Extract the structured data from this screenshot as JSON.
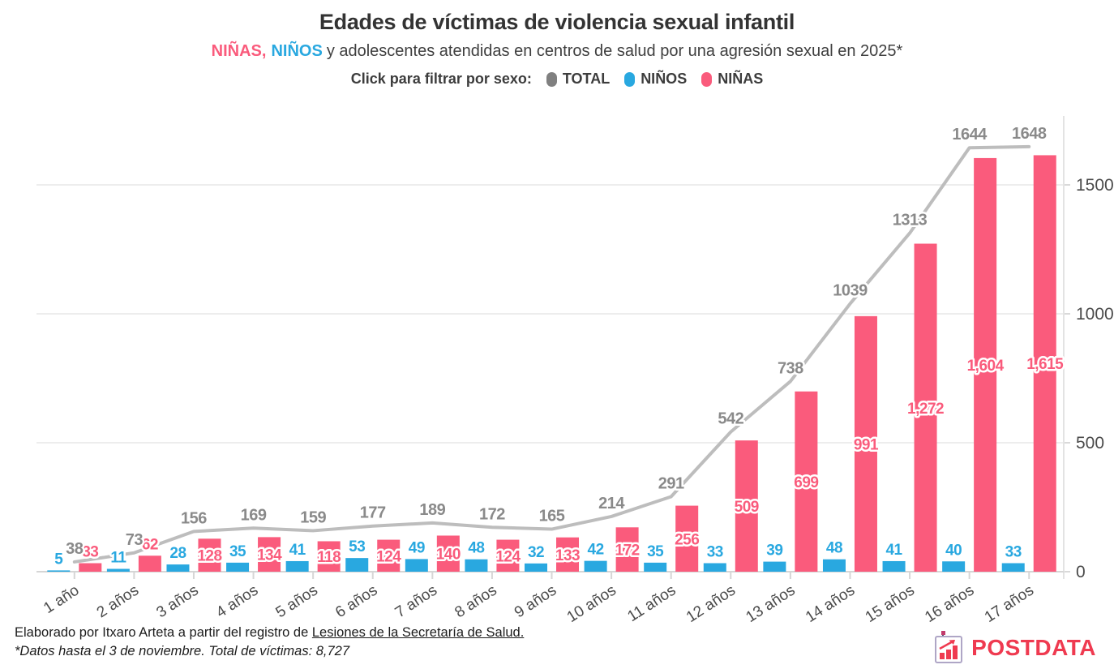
{
  "header": {
    "title": "Edades de víctimas de violencia sexual infantil",
    "subtitle": {
      "girls": "NIÑAS,",
      "boys": "NIÑOS",
      "rest": "y adolescentes atendidas en centros de salud por una agresión sexual en 2025*"
    },
    "legend_prompt": "Click para filtrar por sexo:",
    "legend": [
      {
        "label": "TOTAL",
        "color": "#808080",
        "key": "total"
      },
      {
        "label": "NIÑOS",
        "color": "#29a8e0",
        "key": "ninos"
      },
      {
        "label": "NIÑAS",
        "color": "#fa5b7c",
        "key": "ninas"
      }
    ]
  },
  "chart_data": {
    "type": "bar",
    "title": "Edades de víctimas de violencia sexual infantil",
    "subtitle": "NIÑAS, NIÑOS y adolescentes atendidas en centros de salud por una agresión sexual en 2025*",
    "categories": [
      "1 año",
      "2 años",
      "3 años",
      "4 años",
      "5 años",
      "6 años",
      "7 años",
      "8 años",
      "9 años",
      "10 años",
      "11 años",
      "12 años",
      "13 años",
      "14 años",
      "15 años",
      "16 años",
      "17 años"
    ],
    "series": [
      {
        "name": "NIÑOS",
        "type": "bar",
        "color": "#29a8e0",
        "values": [
          5,
          11,
          28,
          35,
          41,
          53,
          49,
          48,
          32,
          42,
          35,
          33,
          39,
          48,
          41,
          40,
          33
        ]
      },
      {
        "name": "NIÑAS",
        "type": "bar",
        "color": "#fa5b7c",
        "values": [
          33,
          62,
          128,
          134,
          118,
          124,
          140,
          124,
          133,
          172,
          256,
          509,
          699,
          991,
          1272,
          1604,
          1615
        ],
        "labels": [
          "33",
          "62",
          "128",
          "134",
          "118",
          "124",
          "140",
          "124",
          "133",
          "172",
          "256",
          "509",
          "699",
          "991",
          "1,272",
          "1,604",
          "1,615"
        ]
      },
      {
        "name": "TOTAL",
        "type": "line",
        "color": "#bdbdbd",
        "label_color": "#8a8a8a",
        "values": [
          38,
          73,
          156,
          169,
          159,
          177,
          189,
          172,
          165,
          214,
          291,
          542,
          738,
          1039,
          1313,
          1644,
          1648
        ]
      }
    ],
    "xlabel": "",
    "ylabel": "",
    "ylim": [
      0,
      1700
    ],
    "yticks": [
      0,
      500,
      1000,
      1500
    ],
    "ytick_labels": [
      "0",
      "500",
      "1000",
      "1500"
    ],
    "axis_side": "right",
    "grid": true,
    "legend_position": "top"
  },
  "footer": {
    "credit_prefix": "Elaborado por Itxaro Arteta a partir del registro de ",
    "credit_link": "Lesiones de la Secretaría de Salud.",
    "note": "*Datos hasta el 3 de noviembre. Total de víctimas: 8,727",
    "brand": "POSTDATA"
  }
}
